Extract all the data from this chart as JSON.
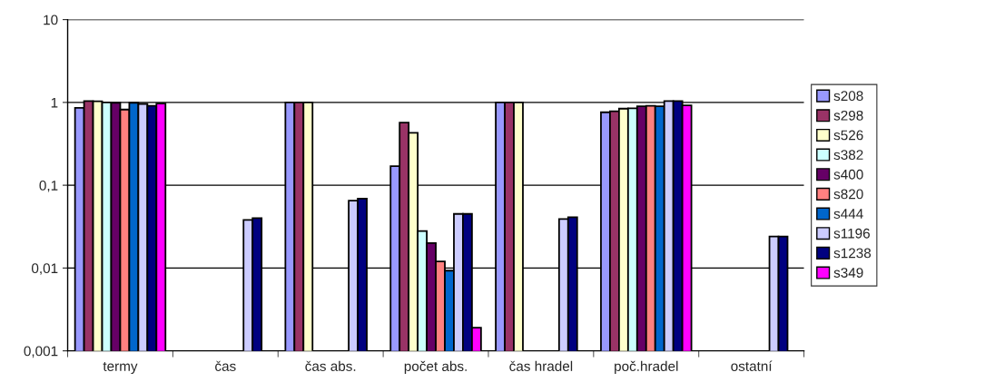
{
  "chart_data": {
    "type": "bar",
    "log": "y",
    "grid": "y",
    "legend": "right",
    "categories": [
      "termy",
      "čas",
      "čas abs.",
      "počet abs.",
      "čas hradel",
      "poč.hradel",
      "ostatní"
    ],
    "ylim": [
      0.001,
      10
    ],
    "yticks": [
      {
        "value": 0.001,
        "label": "0,001"
      },
      {
        "value": 0.01,
        "label": "0,01"
      },
      {
        "value": 0.1,
        "label": "0,1"
      },
      1,
      10
    ],
    "series": [
      {
        "name": "s208",
        "color": "#9999ff",
        "values": [
          0.86,
          null,
          1,
          0.17,
          1,
          0.76,
          null
        ]
      },
      {
        "name": "s298",
        "color": "#993366",
        "values": [
          1.04,
          null,
          1,
          0.57,
          1,
          0.78,
          null
        ]
      },
      {
        "name": "s526",
        "color": "#ffffcc",
        "values": [
          1.03,
          null,
          1,
          0.43,
          1,
          0.84,
          null
        ]
      },
      {
        "name": "s382",
        "color": "#ccffff",
        "values": [
          1.0,
          null,
          null,
          0.028,
          null,
          0.85,
          null
        ]
      },
      {
        "name": "s400",
        "color": "#660066",
        "values": [
          0.99,
          null,
          null,
          0.02,
          null,
          0.9,
          null
        ]
      },
      {
        "name": "s820",
        "color": "#ff8080",
        "values": [
          0.82,
          null,
          null,
          0.012,
          null,
          0.91,
          null
        ]
      },
      {
        "name": "s444",
        "color": "#0066cc",
        "values": [
          0.99,
          null,
          null,
          0.0093,
          null,
          0.9,
          null
        ]
      },
      {
        "name": "s1196",
        "color": "#ccccff",
        "values": [
          0.96,
          0.038,
          0.065,
          0.045,
          0.039,
          1.04,
          0.024
        ]
      },
      {
        "name": "s1238",
        "color": "#000080",
        "values": [
          0.91,
          0.04,
          0.069,
          0.045,
          0.041,
          1.04,
          0.024
        ]
      },
      {
        "name": "s349",
        "color": "#ff00ff",
        "values": [
          0.97,
          null,
          null,
          0.0019,
          null,
          0.92,
          null
        ]
      }
    ]
  }
}
